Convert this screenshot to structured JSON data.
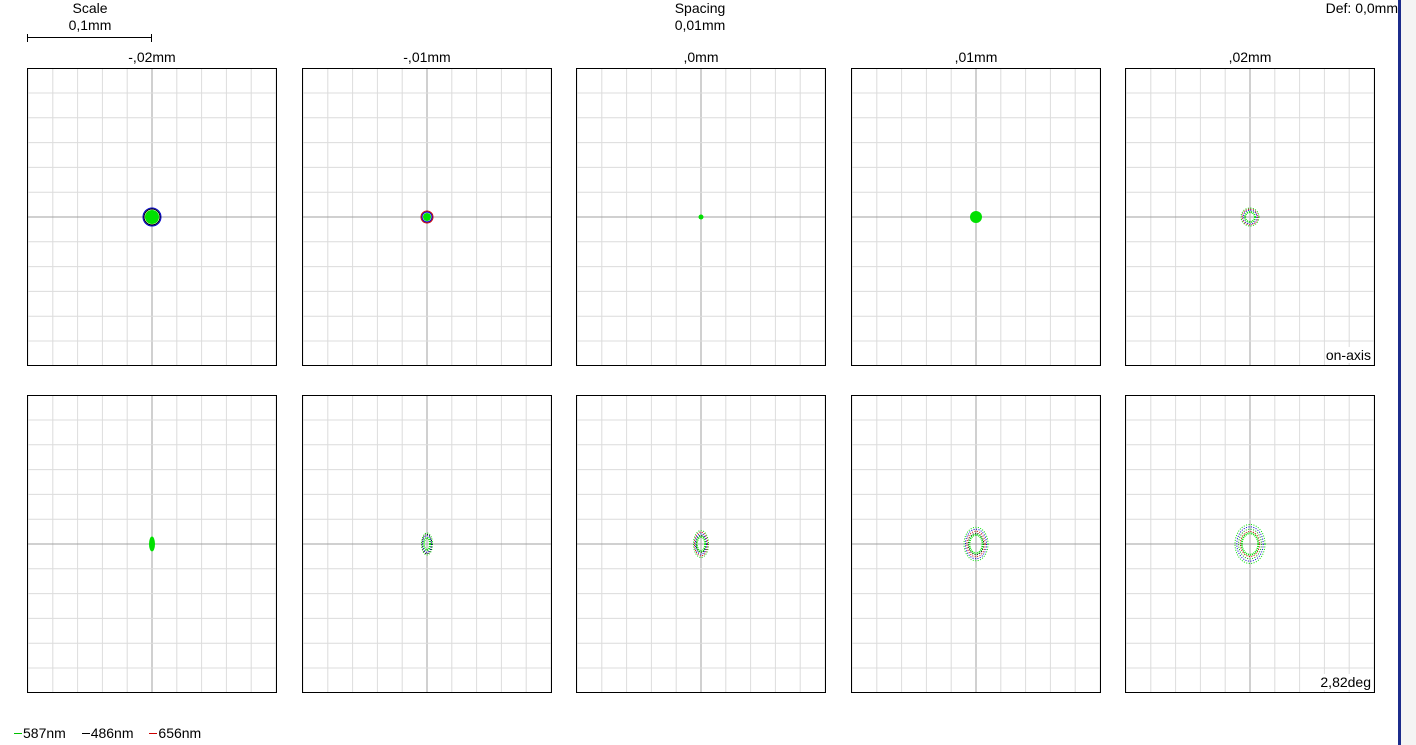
{
  "header": {
    "scale_title": "Scale",
    "scale_value": "0,1mm",
    "spacing_title": "Spacing",
    "spacing_value": "0,01mm",
    "defocus": "Def: 0,0mm"
  },
  "columns": [
    "-,02mm",
    "-,01mm",
    ",0mm",
    ",01mm",
    ",02mm"
  ],
  "rows": [
    {
      "field_label": "on-axis",
      "spots": [
        {
          "shape": "round",
          "size": 12,
          "fill": "#00e000",
          "rings": [
            "#000000",
            "#0000cc"
          ],
          "aspect": 1.0
        },
        {
          "shape": "round",
          "size": 6,
          "fill": "#00e000",
          "rings": [
            "#0000cc",
            "#cc0000"
          ],
          "aspect": 1.0
        },
        {
          "shape": "round",
          "size": 3,
          "fill": "#00e000",
          "rings": [],
          "aspect": 1.0
        },
        {
          "shape": "round",
          "size": 10,
          "fill": "#00e000",
          "rings": [],
          "aspect": 1.0
        },
        {
          "shape": "dotted",
          "size": 16,
          "fill": "#00e000",
          "rings": [
            "#cc0000",
            "#0000cc"
          ],
          "aspect": 1.0
        }
      ]
    },
    {
      "field_label": "2,82deg",
      "spots": [
        {
          "shape": "round",
          "size": 4,
          "fill": "#00e000",
          "rings": [],
          "aspect": 2.5
        },
        {
          "shape": "dotted",
          "size": 9,
          "fill": "#00e000",
          "rings": [
            "#000000",
            "#0000cc"
          ],
          "aspect": 2.0
        },
        {
          "shape": "dotted",
          "size": 13,
          "fill": "#00e000",
          "rings": [
            "#cc0000",
            "#0000cc",
            "#000000"
          ],
          "aspect": 1.8
        },
        {
          "shape": "dotted",
          "size": 22,
          "fill": "#00e000",
          "rings": [
            "#0000cc",
            "#cc0000",
            "#000000"
          ],
          "aspect": 1.4
        },
        {
          "shape": "dotted",
          "size": 28,
          "fill": "#00e000",
          "rings": [
            "#0000cc",
            "#00aa00",
            "#cc0000"
          ],
          "aspect": 1.3
        }
      ]
    }
  ],
  "legend": [
    {
      "label": "587nm",
      "color": "#00c000"
    },
    {
      "label": "486nm",
      "color": "#000000"
    },
    {
      "label": "656nm",
      "color": "#cc0000"
    }
  ],
  "colors": {
    "grid": "#dcdcdc",
    "axis": "#a0a0a0",
    "frame": "#000000"
  }
}
